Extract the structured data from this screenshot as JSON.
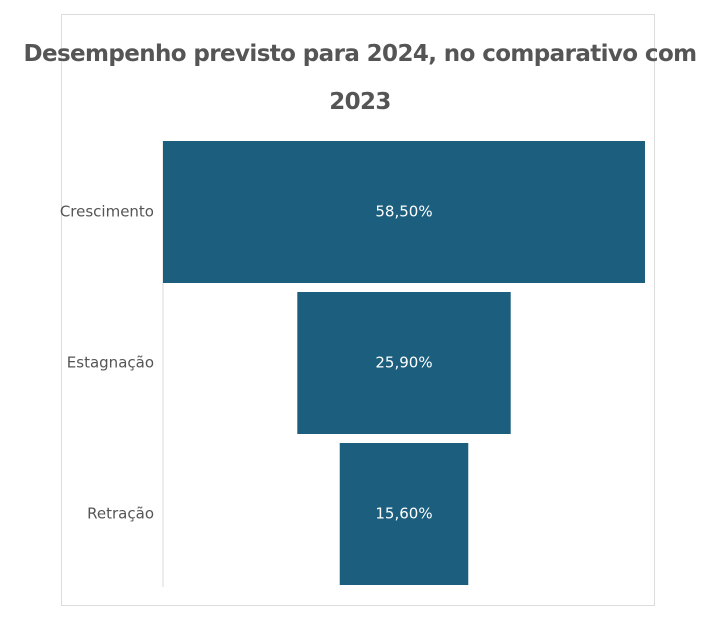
{
  "chart_data": {
    "type": "bar",
    "subtype": "funnel",
    "title_line1": "Desempenho previsto para 2024, no comparativo com",
    "title_line2": "2023",
    "categories": [
      "Crescimento",
      "Estagnação",
      "Retração"
    ],
    "values": [
      58.5,
      25.9,
      15.6
    ],
    "value_labels": [
      "58,50%",
      "25,90%",
      "15,60%"
    ],
    "unit": "%",
    "bar_color": "#1b5e7e",
    "grid": false,
    "legend": "none"
  }
}
